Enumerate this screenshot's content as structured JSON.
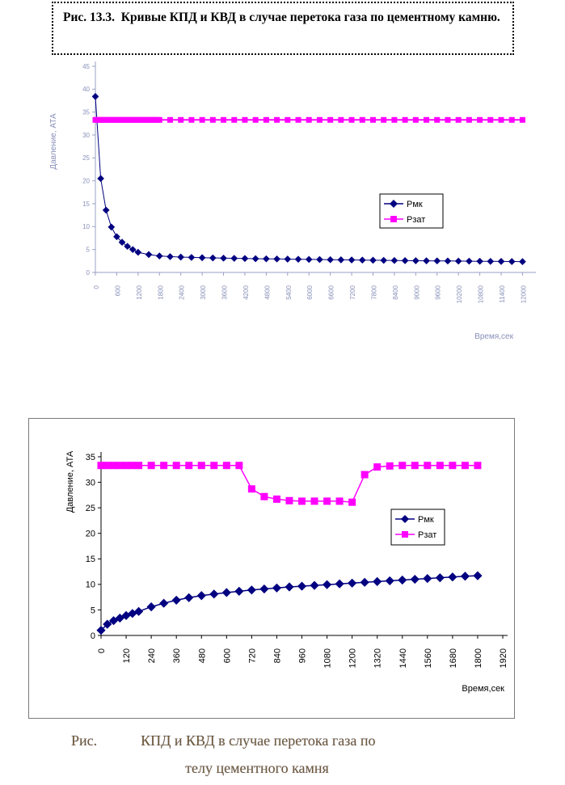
{
  "title_box": {
    "text": "Рис. 13.3.  Кривые КПД и КВД в случае перетока газа по цементному камню."
  },
  "caption": {
    "line1": "Рис.            КПД и КВД в случае перетока газа по",
    "line2": "телу цементного камня"
  },
  "colors": {
    "rmk": "#000080",
    "rzat": "#FF00FF",
    "chart1_text": "#8890b8",
    "chart1_axis": "#9aa0c6",
    "chart2_text": "#000000",
    "legend_border": "#000000",
    "chart2_box_border": "#7a7a7a",
    "caption_text": "#6e5738"
  },
  "chart_data": [
    {
      "type": "line",
      "title": "",
      "xlabel": "Время,сек",
      "ylabel": "Давление, АТА",
      "ylim": [
        0,
        45
      ],
      "yticks": [
        0,
        5,
        10,
        15,
        20,
        25,
        30,
        35,
        40,
        45
      ],
      "xlim": [
        0,
        12240
      ],
      "xticks": [
        0,
        600,
        1200,
        1800,
        2400,
        3000,
        3600,
        4200,
        4800,
        5400,
        6000,
        6600,
        7200,
        7800,
        8400,
        9000,
        9600,
        10200,
        10800,
        11400,
        12000
      ],
      "legend_position": "right-middle",
      "grid": false,
      "series": [
        {
          "name": "Рмк",
          "marker": "diamond",
          "color": "#000080",
          "x": [
            0,
            150,
            300,
            450,
            600,
            750,
            900,
            1050,
            1200,
            1500,
            1800,
            2100,
            2400,
            2700,
            3000,
            3300,
            3600,
            3900,
            4200,
            4500,
            4800,
            5100,
            5400,
            5700,
            6000,
            6300,
            6600,
            6900,
            7200,
            7500,
            7800,
            8100,
            8400,
            8700,
            9000,
            9300,
            9600,
            9900,
            10200,
            10500,
            10800,
            11100,
            11400,
            11700,
            12000
          ],
          "y": [
            38.4,
            20.5,
            13.6,
            9.9,
            7.8,
            6.6,
            5.7,
            5.0,
            4.4,
            3.9,
            3.6,
            3.45,
            3.35,
            3.28,
            3.22,
            3.17,
            3.12,
            3.08,
            3.04,
            3.0,
            2.97,
            2.94,
            2.91,
            2.88,
            2.85,
            2.82,
            2.79,
            2.76,
            2.73,
            2.7,
            2.67,
            2.64,
            2.61,
            2.58,
            2.56,
            2.54,
            2.52,
            2.5,
            2.48,
            2.46,
            2.44,
            2.42,
            2.4,
            2.38,
            2.36
          ]
        },
        {
          "name": "Рзат",
          "marker": "square",
          "color": "#FF00FF",
          "x": [
            0,
            60,
            120,
            180,
            240,
            300,
            360,
            420,
            480,
            540,
            600,
            660,
            720,
            780,
            840,
            900,
            960,
            1020,
            1080,
            1140,
            1200,
            1260,
            1320,
            1380,
            1440,
            1500,
            1560,
            1620,
            1680,
            1740,
            1800,
            2100,
            2400,
            2700,
            3000,
            3300,
            3600,
            3900,
            4200,
            4500,
            4800,
            5100,
            5400,
            5700,
            6000,
            6300,
            6600,
            6900,
            7200,
            7500,
            7800,
            8100,
            8400,
            8700,
            9000,
            9300,
            9600,
            9900,
            10200,
            10500,
            10800,
            11100,
            11400,
            11700,
            12000
          ],
          "y_const": 33.3
        }
      ]
    },
    {
      "type": "line",
      "title": "",
      "xlabel": "Время,сек",
      "ylabel": "Давление, АТА",
      "ylim": [
        0,
        35
      ],
      "yticks": [
        0,
        5,
        10,
        15,
        20,
        25,
        30,
        35
      ],
      "xlim": [
        0,
        1920
      ],
      "xticks": [
        0,
        120,
        240,
        360,
        480,
        600,
        720,
        840,
        960,
        1080,
        1200,
        1320,
        1440,
        1560,
        1680,
        1800,
        1920
      ],
      "legend_position": "right-middle",
      "grid": false,
      "series": [
        {
          "name": "Рмк",
          "marker": "diamond",
          "color": "#000080",
          "x": [
            0,
            30,
            60,
            90,
            120,
            150,
            180,
            240,
            300,
            360,
            420,
            480,
            540,
            600,
            660,
            720,
            780,
            840,
            900,
            960,
            1020,
            1080,
            1140,
            1200,
            1260,
            1320,
            1380,
            1440,
            1500,
            1560,
            1620,
            1680,
            1740,
            1800
          ],
          "y": [
            1.0,
            2.2,
            2.9,
            3.4,
            3.9,
            4.3,
            4.7,
            5.6,
            6.3,
            6.9,
            7.4,
            7.8,
            8.1,
            8.4,
            8.65,
            8.9,
            9.1,
            9.3,
            9.5,
            9.65,
            9.8,
            9.95,
            10.1,
            10.25,
            10.4,
            10.55,
            10.7,
            10.85,
            11.0,
            11.15,
            11.3,
            11.45,
            11.6,
            11.7
          ]
        },
        {
          "name": "Рзат",
          "marker": "square",
          "color": "#FF00FF",
          "x": [
            0,
            30,
            60,
            90,
            120,
            150,
            180,
            240,
            300,
            360,
            420,
            480,
            540,
            600,
            660,
            720,
            780,
            840,
            900,
            960,
            1020,
            1080,
            1140,
            1200,
            1260,
            1320,
            1380,
            1440,
            1500,
            1560,
            1620,
            1680,
            1740,
            1800
          ],
          "y": [
            33.3,
            33.3,
            33.3,
            33.3,
            33.3,
            33.3,
            33.3,
            33.3,
            33.3,
            33.3,
            33.3,
            33.3,
            33.3,
            33.3,
            33.3,
            28.7,
            27.2,
            26.7,
            26.4,
            26.3,
            26.3,
            26.3,
            26.3,
            26.1,
            31.5,
            33.0,
            33.2,
            33.3,
            33.3,
            33.3,
            33.3,
            33.3,
            33.3,
            33.3
          ]
        }
      ]
    }
  ]
}
